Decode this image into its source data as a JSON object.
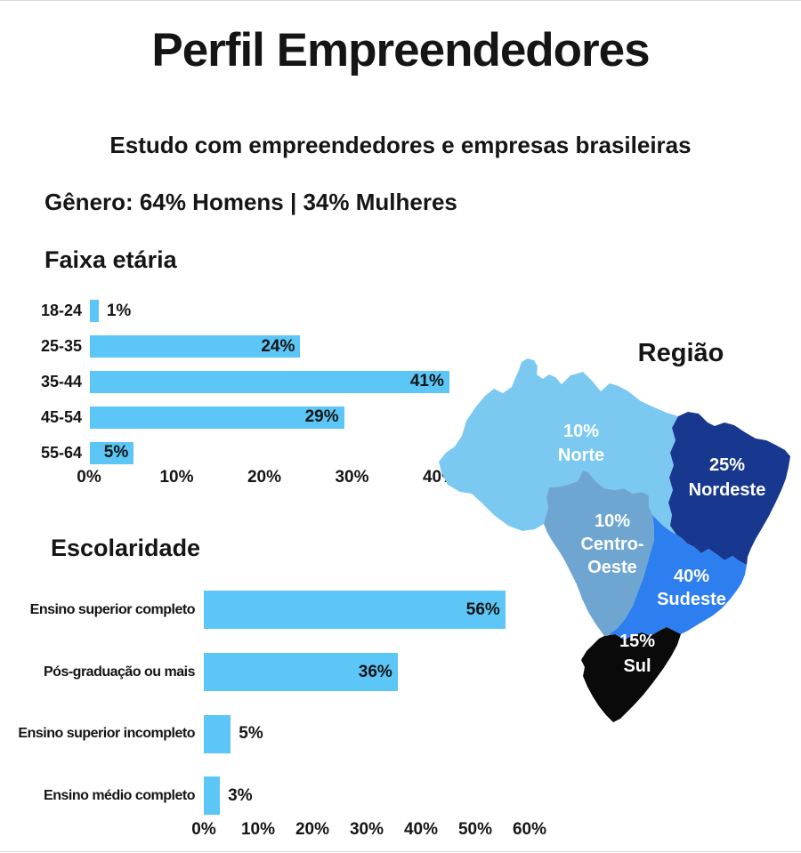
{
  "header": {
    "title": "Perfil Empreendedores",
    "subtitle": "Estudo com empreendedores e empresas brasileiras",
    "gender_line": "Gênero: 64% Homens | 34% Mulheres"
  },
  "colors": {
    "bar_blue": "#5CC6F6",
    "norte_blue": "#7BC9F0",
    "nordeste_navy": "#18388F",
    "centro_oeste_blue": "#6FA6D1",
    "sudeste_blue": "#2D7FF0",
    "sul_black": "#0A0A0A",
    "text_dark": "#151515",
    "map_label_white": "#FFFFFF"
  },
  "chart_data": [
    {
      "id": "faixa_etaria",
      "type": "bar",
      "orientation": "horizontal",
      "title": "Faixa etária",
      "categories": [
        "18-24",
        "25-35",
        "35-44",
        "45-54",
        "55-64"
      ],
      "values": [
        1,
        24,
        41,
        29,
        5
      ],
      "value_labels": [
        "1%",
        "24%",
        "41%",
        "29%",
        "5%"
      ],
      "x_ticks": [
        "0%",
        "10%",
        "20%",
        "30%",
        "40%"
      ],
      "xlabel": "",
      "ylabel": "",
      "xlim": [
        0,
        41
      ],
      "grid": false,
      "legend": false
    },
    {
      "id": "regiao",
      "type": "map",
      "title": "Região",
      "regions": [
        {
          "name": "Norte",
          "value": 10,
          "label_lines": [
            "10%",
            "Norte"
          ],
          "color": "#7BC9F0"
        },
        {
          "name": "Nordeste",
          "value": 25,
          "label_lines": [
            "25%",
            "Nordeste"
          ],
          "color": "#18388F"
        },
        {
          "name": "Centro-Oeste",
          "value": 10,
          "label_lines": [
            "10%",
            "Centro-",
            "Oeste"
          ],
          "color": "#6FA6D1"
        },
        {
          "name": "Sudeste",
          "value": 40,
          "label_lines": [
            "40%",
            "Sudeste"
          ],
          "color": "#2D7FF0"
        },
        {
          "name": "Sul",
          "value": 15,
          "label_lines": [
            "15%",
            "Sul"
          ],
          "color": "#0A0A0A"
        }
      ]
    },
    {
      "id": "escolaridade",
      "type": "bar",
      "orientation": "horizontal",
      "title": "Escolaridade",
      "categories": [
        "Ensino superior completo",
        "Pós-graduação ou mais",
        "Ensino superior incompleto",
        "Ensino médio completo"
      ],
      "values": [
        56,
        36,
        5,
        3
      ],
      "value_labels": [
        "56%",
        "36%",
        "5%",
        "3%"
      ],
      "x_ticks": [
        "0%",
        "10%",
        "20%",
        "30%",
        "40%",
        "50%",
        "60%"
      ],
      "xlabel": "",
      "ylabel": "",
      "xlim": [
        0,
        60
      ],
      "grid": false,
      "legend": false
    }
  ]
}
